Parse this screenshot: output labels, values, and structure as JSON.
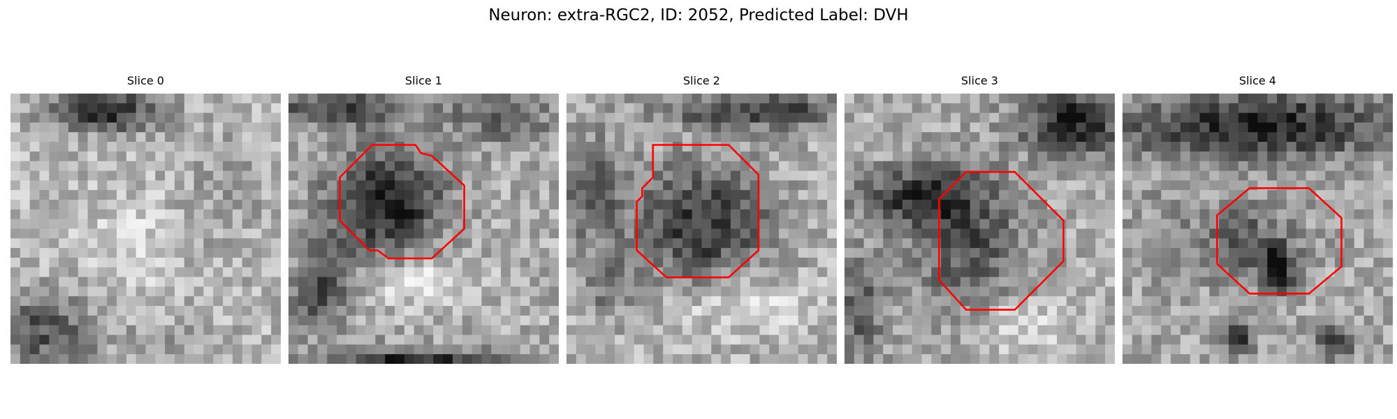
{
  "figure": {
    "title": "Neuron: extra-RGC2, ID: 2052, Predicted Label: DVH"
  },
  "slices": [
    {
      "title": "Slice 0",
      "has_contour": false
    },
    {
      "title": "Slice 1",
      "has_contour": true
    },
    {
      "title": "Slice 2",
      "has_contour": true
    },
    {
      "title": "Slice 3",
      "has_contour": true
    },
    {
      "title": "Slice 4",
      "has_contour": true
    }
  ],
  "colors": {
    "contour": "#ff0000",
    "background": "#ffffff"
  },
  "image_kind": "grayscale microscopy slice"
}
